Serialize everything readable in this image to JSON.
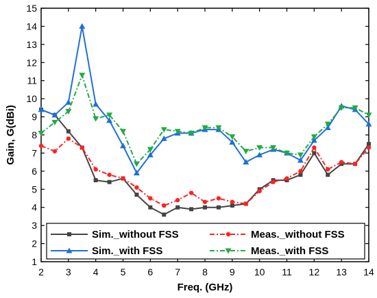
{
  "chart_data": {
    "type": "line",
    "title": "",
    "xlabel": "Freq. (GHz)",
    "ylabel": "Gain, G(dBi)",
    "xlim": [
      2,
      14
    ],
    "ylim": [
      1,
      15
    ],
    "x_ticks": [
      "2",
      "3",
      "4",
      "5",
      "6",
      "7",
      "8",
      "9",
      "10",
      "11",
      "12",
      "13",
      "14"
    ],
    "y_ticks": [
      "1",
      "2",
      "3",
      "4",
      "5",
      "6",
      "7",
      "8",
      "9",
      "10",
      "11",
      "12",
      "13",
      "14",
      "15"
    ],
    "grid": false,
    "legend_position": "bottom",
    "x": [
      2,
      2.5,
      3,
      3.5,
      4,
      4.5,
      5,
      5.5,
      6,
      6.5,
      7,
      7.5,
      8,
      8.5,
      9,
      9.5,
      10,
      10.5,
      11,
      11.5,
      12,
      12.5,
      13,
      13.5,
      14
    ],
    "series": [
      {
        "name": "Sim._without FSS",
        "color": "#444444",
        "dash": "solid",
        "marker": "square",
        "values": [
          9.4,
          9.1,
          8.2,
          7.3,
          5.5,
          5.4,
          5.6,
          4.7,
          4.0,
          3.6,
          4.0,
          3.9,
          4.0,
          4.0,
          4.1,
          4.2,
          5.0,
          5.5,
          5.5,
          5.8,
          7.0,
          5.8,
          6.4,
          6.4,
          7.5
        ]
      },
      {
        "name": "Meas._without FSS",
        "color": "#ff2222",
        "dash": "dashdot",
        "marker": "circle",
        "values": [
          7.4,
          7.1,
          7.8,
          7.3,
          6.1,
          5.8,
          5.6,
          5.1,
          4.5,
          4.1,
          4.4,
          4.8,
          4.3,
          4.5,
          4.3,
          4.2,
          4.9,
          5.4,
          5.6,
          6.0,
          7.3,
          6.1,
          6.5,
          6.4,
          7.3
        ]
      },
      {
        "name": "Sim._with FSS",
        "color": "#1e6fd9",
        "dash": "solid",
        "marker": "triangle-up",
        "values": [
          9.4,
          9.1,
          9.8,
          14.0,
          9.7,
          8.8,
          7.4,
          5.9,
          6.9,
          7.8,
          8.1,
          8.1,
          8.3,
          8.3,
          7.6,
          6.5,
          6.9,
          7.2,
          7.0,
          6.6,
          7.7,
          8.4,
          9.6,
          9.4,
          8.6
        ]
      },
      {
        "name": "Meas._with FSS",
        "color": "#22aa44",
        "dash": "dashdot",
        "marker": "triangle-down",
        "values": [
          8.1,
          8.7,
          9.3,
          11.3,
          8.9,
          9.1,
          8.2,
          6.4,
          7.2,
          8.3,
          8.2,
          8.1,
          8.4,
          8.4,
          7.9,
          7.1,
          7.3,
          7.3,
          7.0,
          6.9,
          7.9,
          8.6,
          9.5,
          9.5,
          9.1
        ]
      }
    ]
  }
}
